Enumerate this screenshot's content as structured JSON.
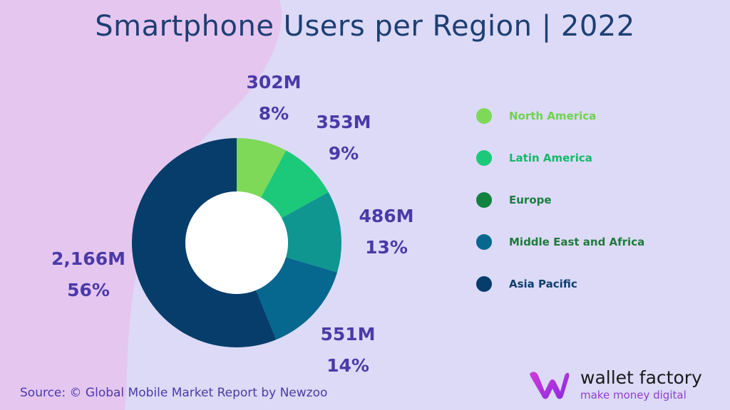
{
  "title": "Smartphone Users per Region | 2022",
  "source": "Source: © Global Mobile Market Report by Newzoo",
  "logo": {
    "name": "wallet factory",
    "tagline": "make money digital"
  },
  "colors": {
    "background": "#dcdaf7",
    "blob": "#e8c8f0",
    "label": "#4a3aa8",
    "title": "#1d3f73"
  },
  "chart_data": {
    "type": "donut",
    "title": "Smartphone Users per Region | 2022",
    "unit": "M",
    "series": [
      {
        "name": "North America",
        "value": 302,
        "value_label": "302M",
        "percent_label": "8%",
        "color": "#7dd957",
        "legend_text_color": "#6fd34a"
      },
      {
        "name": "Latin America",
        "value": 353,
        "value_label": "353M",
        "percent_label": "9%",
        "color": "#1cc97a",
        "legend_text_color": "#17b86a"
      },
      {
        "name": "Europe",
        "value": 486,
        "value_label": "486M",
        "percent_label": "13%",
        "color": "#0f9690",
        "legend_text_color": "#1b7e3e"
      },
      {
        "name": "Middle East and Africa",
        "value": 551,
        "value_label": "551M",
        "percent_label": "14%",
        "color": "#06678f",
        "legend_text_color": "#1f7a3a"
      },
      {
        "name": "Asia Pacific",
        "value": 2166,
        "value_label": "2,166M",
        "percent_label": "56%",
        "color": "#063d6b",
        "legend_text_color": "#0d3f6e"
      }
    ],
    "legend_dot_colors": [
      "#7dd957",
      "#1cc97a",
      "#11823f",
      "#06678f",
      "#063d6b"
    ],
    "legend_position": "right"
  }
}
